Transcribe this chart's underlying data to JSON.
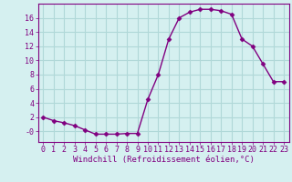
{
  "x": [
    0,
    1,
    2,
    3,
    4,
    5,
    6,
    7,
    8,
    9,
    10,
    11,
    12,
    13,
    14,
    15,
    16,
    17,
    18,
    19,
    20,
    21,
    22,
    23
  ],
  "y": [
    2.0,
    1.5,
    1.2,
    0.8,
    0.2,
    -0.4,
    -0.4,
    -0.4,
    -0.3,
    -0.3,
    4.5,
    8.0,
    13.0,
    16.0,
    16.8,
    17.2,
    17.2,
    17.0,
    16.5,
    13.0,
    12.0,
    9.5,
    7.0,
    7.0
  ],
  "line_color": "#800080",
  "marker": "D",
  "marker_size": 2.5,
  "bg_color": "#d5f0f0",
  "xlabel": "Windchill (Refroidissement éolien,°C)",
  "xlim": [
    -0.5,
    23.5
  ],
  "ylim": [
    -1.5,
    18.0
  ],
  "yticks": [
    0,
    2,
    4,
    6,
    8,
    10,
    12,
    14,
    16
  ],
  "ytick_labels": [
    "-0",
    "2",
    "4",
    "6",
    "8",
    "10",
    "12",
    "14",
    "16"
  ],
  "xticks": [
    0,
    1,
    2,
    3,
    4,
    5,
    6,
    7,
    8,
    9,
    10,
    11,
    12,
    13,
    14,
    15,
    16,
    17,
    18,
    19,
    20,
    21,
    22,
    23
  ],
  "grid_color": "#b0d8d8",
  "spine_color": "#800080",
  "font_color": "#800080",
  "xlabel_fontsize": 6.5,
  "tick_fontsize": 6.0,
  "linewidth": 1.0
}
